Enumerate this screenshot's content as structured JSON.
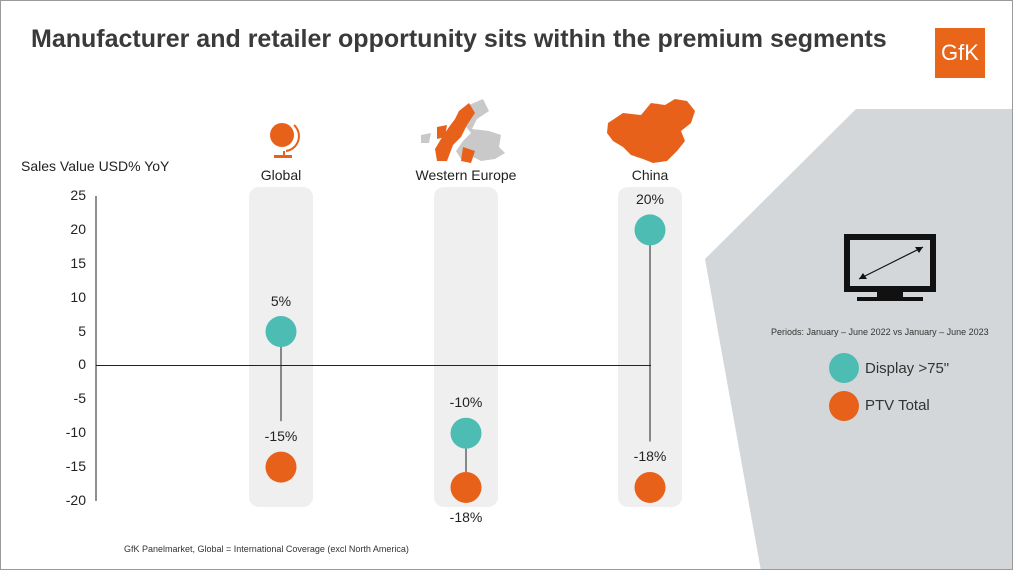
{
  "title": "Manufacturer and retailer opportunity sits within the premium segments",
  "logo_text": "GfK",
  "colors": {
    "display": "#4dbcb3",
    "ptv": "#e8611a",
    "panel": "#d4d7d9",
    "column_bg": "#efefef",
    "accent": "#e8651a"
  },
  "periods_text": "Periods: January – June 2022 vs January – June 2023",
  "footnote": "GfK Panelmarket, Global = International Coverage (excl North America)",
  "icons": [
    "globe-icon",
    "europe-map-icon",
    "china-map-icon",
    "tv-icon"
  ],
  "chart_data": {
    "type": "scatter",
    "categories": [
      "Global",
      "Western Europe",
      "China"
    ],
    "ylabel": "Sales Value USD% YoY",
    "ylim": [
      -20,
      25
    ],
    "yticks": [
      25,
      20,
      15,
      10,
      5,
      0,
      -5,
      -10,
      -15,
      -20
    ],
    "series": [
      {
        "name": "Display >75\"",
        "values": [
          5,
          -10,
          20
        ],
        "labels": [
          "5%",
          "-10%",
          "20%"
        ]
      },
      {
        "name": "PTV Total",
        "values": [
          -15,
          -18,
          -18
        ],
        "labels": [
          "-15%",
          "-18%",
          "-18%"
        ]
      }
    ]
  }
}
